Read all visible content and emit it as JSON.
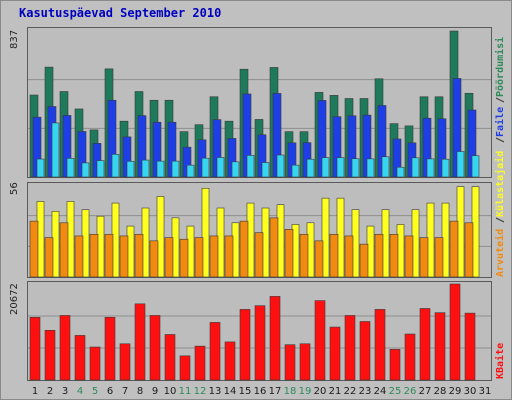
{
  "title": "Kasutuspäevad September 2010",
  "colors": {
    "visits": "#1e7a5a",
    "pages": "#1e3fe6",
    "hits": "#36d6f0",
    "bandwidth": "#ff1010",
    "traffic_out": "#f08a10",
    "traffic_in": "#ffff20",
    "weekend_label": "#2f8a5a",
    "weekday_label": "#1a1a1a"
  },
  "right_labels": {
    "visits": "Pöördumisi",
    "pages": "Faile",
    "hits": "Külastajaid",
    "traffic_out": "Arvuteid",
    "bandwidth": "KBaite",
    "separator": "/"
  },
  "chart_data": [
    {
      "type": "bar",
      "panel": "top",
      "ymax_label": "837",
      "ylim": [
        0,
        837
      ],
      "categories": [
        "1",
        "2",
        "3",
        "4",
        "5",
        "6",
        "7",
        "8",
        "9",
        "10",
        "11",
        "12",
        "13",
        "14",
        "15",
        "16",
        "17",
        "18",
        "19",
        "20",
        "21",
        "22",
        "23",
        "24",
        "25",
        "26",
        "27",
        "28",
        "29",
        "30",
        "31"
      ],
      "weekend": [
        "4",
        "5",
        "11",
        "12",
        "18",
        "19",
        "25",
        "26"
      ],
      "series": [
        {
          "name": "Pöördumisi",
          "values": [
            470,
            630,
            490,
            390,
            270,
            620,
            320,
            490,
            440,
            440,
            260,
            300,
            460,
            320,
            618,
            330,
            628,
            260,
            260,
            485,
            468,
            450,
            450,
            563,
            306,
            293,
            460,
            460,
            837,
            480,
            0
          ]
        },
        {
          "name": "Faile",
          "values": [
            343,
            404,
            353,
            261,
            193,
            440,
            230,
            352,
            314,
            314,
            171,
            213,
            329,
            221,
            476,
            242,
            479,
            196,
            197,
            439,
            346,
            351,
            355,
            410,
            218,
            196,
            337,
            334,
            565,
            384,
            0
          ]
        },
        {
          "name": "Külastajaid",
          "values": [
            103,
            310,
            107,
            81,
            94,
            130,
            90,
            97,
            91,
            91,
            68,
            108,
            112,
            87,
            124,
            83,
            126,
            68,
            102,
            111,
            111,
            105,
            104,
            116,
            56,
            110,
            104,
            102,
            146,
            122,
            0
          ]
        }
      ]
    },
    {
      "type": "bar",
      "panel": "middle",
      "ymax_label": "56",
      "ylim": [
        0,
        56
      ],
      "series": [
        {
          "name": "Arvuteid",
          "values": [
            34,
            24,
            33,
            25,
            26,
            26,
            25,
            26,
            22,
            24,
            23,
            24,
            25,
            25,
            34,
            27,
            36,
            29,
            26,
            22,
            26,
            25,
            20,
            26,
            26,
            25,
            24,
            24,
            34,
            33,
            0
          ]
        },
        {
          "name": "Külastajaid",
          "values": [
            46,
            40,
            46,
            41,
            37,
            45,
            31,
            42,
            49,
            36,
            31,
            54,
            42,
            33,
            45,
            42,
            44,
            32,
            33,
            48,
            48,
            41,
            31,
            41,
            32,
            41,
            45,
            45,
            55,
            55,
            0
          ]
        }
      ]
    },
    {
      "type": "bar",
      "panel": "bottom",
      "ymax_label": "20672",
      "ylim": [
        0,
        20672
      ],
      "series": [
        {
          "name": "KBaite",
          "values": [
            13500,
            10700,
            13900,
            9600,
            7100,
            13500,
            7800,
            16400,
            13900,
            9800,
            5200,
            7300,
            12400,
            8200,
            15200,
            16000,
            18000,
            7600,
            7800,
            17100,
            11400,
            13900,
            12600,
            15200,
            6600,
            9900,
            15400,
            14500,
            20672,
            14400,
            0
          ]
        }
      ]
    }
  ]
}
